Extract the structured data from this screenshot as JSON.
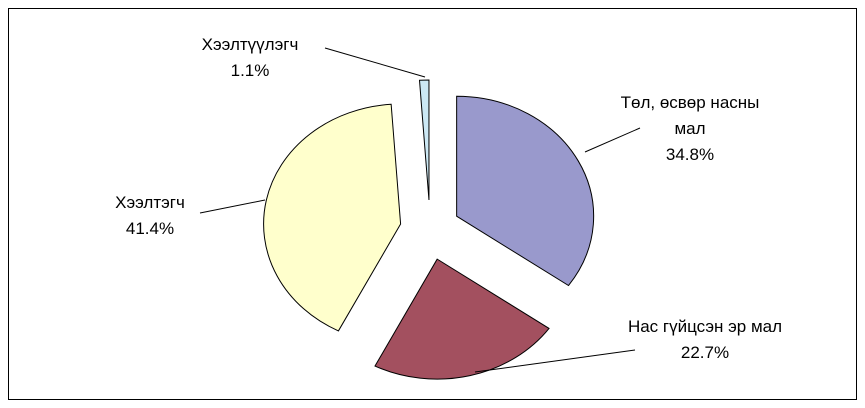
{
  "chart_data": {
    "type": "pie",
    "categories": [
      "Төл, өсвөр насны мал",
      "Нас гүйцсэн эр мал",
      "Хээлтэгч",
      "Хээлтүүлэгч"
    ],
    "values": [
      34.8,
      22.7,
      41.4,
      1.1
    ],
    "value_labels": [
      "34.8%",
      "22.7%",
      "41.4%",
      "1.1%"
    ],
    "colors": [
      "#9999cc",
      "#a3505f",
      "#ffffcc",
      "#cce8f4"
    ]
  }
}
